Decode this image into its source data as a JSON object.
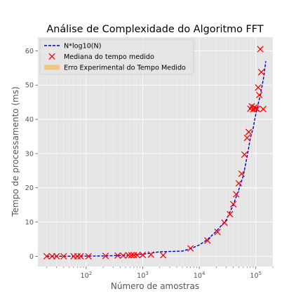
{
  "chart_data": {
    "type": "scatter",
    "title": "Análise de Complexidade do Algoritmo FFT",
    "xlabel": "Número de amostras",
    "ylabel": "Tempo de processamento (ms)",
    "xscale": "log",
    "xlim": [
      14,
      200000
    ],
    "ylim": [
      -3,
      64
    ],
    "yticks": [
      0,
      10,
      20,
      30,
      40,
      50,
      60
    ],
    "xticks": [
      {
        "value": 100,
        "base": "10",
        "exp": "2"
      },
      {
        "value": 1000,
        "base": "10",
        "exp": "3"
      },
      {
        "value": 10000,
        "base": "10",
        "exp": "4"
      },
      {
        "value": 100000,
        "base": "10",
        "exp": "5"
      }
    ],
    "grid": true,
    "legend": {
      "placement": "top-left",
      "entries": [
        {
          "label": "N*log10(N)",
          "kind": "line",
          "color": "#0000cc"
        },
        {
          "label": "Mediana do tempo medido",
          "kind": "marker",
          "color": "#ff0000"
        },
        {
          "label": "Erro Experimental do Tempo Medido",
          "kind": "patch",
          "color": "#f5c36b"
        }
      ]
    },
    "series": [
      {
        "name": "N*log10(N)",
        "kind": "line",
        "color": "#0000cc",
        "x": [
          20,
          30,
          50,
          100,
          200,
          500,
          1000,
          2000,
          5000,
          7000,
          10000,
          14000,
          20000,
          30000,
          40000,
          50000,
          60000,
          70000,
          80000,
          90000,
          100000,
          110000,
          120000,
          130000,
          140000,
          150000
        ],
        "y": [
          0.0,
          0.01,
          0.02,
          0.04,
          0.09,
          0.27,
          0.6,
          1.3,
          1.5,
          2.2,
          3.3,
          4.9,
          7.3,
          10.6,
          15.0,
          19.5,
          23.5,
          29.0,
          34.5,
          37.5,
          41.5,
          44.5,
          47.0,
          50.0,
          53.0,
          57.0
        ]
      },
      {
        "name": "Mediana do tempo medido",
        "kind": "marker",
        "color": "#ff0000",
        "x": [
          20,
          25,
          30,
          40,
          60,
          70,
          80,
          110,
          220,
          360,
          450,
          560,
          630,
          700,
          800,
          1000,
          1400,
          2300,
          7000,
          14000,
          21000,
          28000,
          35000,
          40000,
          45000,
          50000,
          56000,
          63000,
          70000,
          75000,
          80000,
          85000,
          90000,
          95000,
          100000,
          105000,
          110000,
          115000,
          120000,
          125000,
          135000
        ],
        "y": [
          0.0,
          0.0,
          0.0,
          0.0,
          0.0,
          0.0,
          0.0,
          0.0,
          0.1,
          0.2,
          0.2,
          0.3,
          0.3,
          0.3,
          0.3,
          0.4,
          0.5,
          0.3,
          2.3,
          4.6,
          7.1,
          9.8,
          12.3,
          15.2,
          18.1,
          21.3,
          24.1,
          29.7,
          34.6,
          36.3,
          43.1,
          43.8,
          42.9,
          43.5,
          43.2,
          43.0,
          49.3,
          47.1,
          60.5,
          53.8,
          43.0
        ]
      }
    ]
  }
}
